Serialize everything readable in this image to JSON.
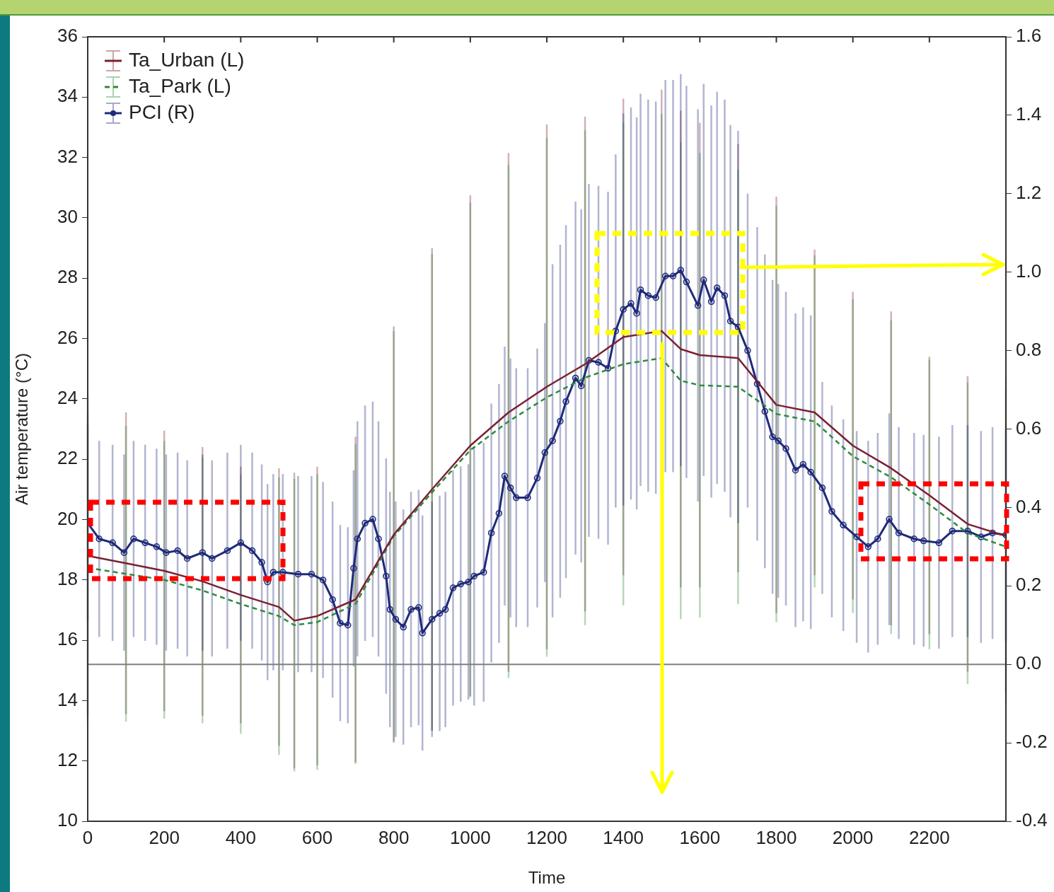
{
  "chart_data": {
    "type": "line",
    "xlabel": "Time",
    "ylabel": "Air temperature (°C)",
    "xlim": [
      0,
      2400
    ],
    "xticks": [
      0,
      200,
      400,
      600,
      800,
      1000,
      1200,
      1400,
      1600,
      1800,
      2000,
      2200,
      {
        "value": 2400,
        "label": null
      }
    ],
    "ylim": [
      10,
      36
    ],
    "yticks": [
      10,
      12,
      14,
      16,
      18,
      20,
      22,
      24,
      26,
      28,
      30,
      32,
      34,
      36
    ],
    "y2lim": [
      -0.4,
      1.6
    ],
    "y2ticks": [
      -0.4,
      -0.2,
      {
        "value": 0,
        "label": "0.0"
      },
      0.2,
      0.4,
      0.6,
      0.8,
      {
        "value": 1,
        "label": "1.0"
      },
      1.2,
      1.4,
      1.6
    ],
    "legend": "top left",
    "ref_lines": [
      {
        "axis": "y2",
        "value": 0,
        "color": "#808080"
      }
    ],
    "series": [
      {
        "name": "Ta_Urban (L)",
        "color": "#7b2030",
        "line_style": "solid",
        "marker": "none",
        "x": [
          0,
          100,
          200,
          300,
          400,
          500,
          540,
          600,
          700,
          800,
          900,
          1000,
          1100,
          1200,
          1300,
          1400,
          1500,
          1550,
          1600,
          1700,
          1800,
          1900,
          2000,
          2100,
          2200,
          2300,
          2400
        ],
        "values": [
          18.8,
          18.55,
          18.3,
          17.95,
          17.5,
          17.1,
          16.65,
          16.8,
          17.35,
          19.5,
          21.0,
          22.45,
          23.55,
          24.4,
          25.15,
          26.05,
          26.25,
          25.65,
          25.45,
          25.35,
          23.8,
          23.55,
          22.45,
          21.7,
          20.8,
          19.85,
          19.45
        ],
        "errors": [
          5.25,
          5.0,
          4.65,
          4.45,
          4.25,
          4.6,
          4.9,
          4.95,
          5.4,
          6.9,
          8.0,
          8.3,
          8.6,
          8.7,
          8.2,
          7.9,
          8.0,
          7.9,
          7.7,
          7.1,
          6.9,
          5.4,
          5.1,
          5.2,
          4.6,
          4.9,
          5.2
        ]
      },
      {
        "name": "Ta_Park (L)",
        "color": "#2e8b3a",
        "line_style": "dashed",
        "marker": "none",
        "x": [
          0,
          100,
          200,
          300,
          400,
          500,
          540,
          600,
          700,
          800,
          900,
          1000,
          1100,
          1200,
          1300,
          1400,
          1500,
          1550,
          1600,
          1700,
          1800,
          1900,
          2000,
          2100,
          2200,
          2300,
          2400
        ],
        "values": [
          18.4,
          18.2,
          18.0,
          17.65,
          17.2,
          16.8,
          16.5,
          16.6,
          17.2,
          19.45,
          20.9,
          22.3,
          23.25,
          24.05,
          24.7,
          25.15,
          25.35,
          24.6,
          24.45,
          24.4,
          23.5,
          23.25,
          22.1,
          21.4,
          20.5,
          19.55,
          19.1
        ],
        "errors": [
          5.1,
          4.9,
          4.6,
          4.4,
          4.3,
          4.6,
          4.85,
          4.9,
          5.3,
          6.8,
          7.9,
          8.2,
          8.5,
          8.6,
          8.2,
          8.0,
          8.1,
          7.9,
          7.7,
          7.2,
          6.9,
          5.5,
          5.2,
          5.2,
          4.8,
          5.0,
          5.2
        ]
      },
      {
        "name": "PCI (R)",
        "color": "#1f2a7a",
        "axis": "y2",
        "line_style": "solid",
        "marker": "circle",
        "x": [
          0,
          30,
          65,
          95,
          120,
          150,
          180,
          205,
          235,
          260,
          300,
          325,
          365,
          400,
          430,
          455,
          470,
          485,
          510,
          550,
          585,
          615,
          640,
          660,
          680,
          695,
          705,
          725,
          745,
          760,
          780,
          790,
          805,
          825,
          845,
          865,
          875,
          900,
          920,
          935,
          955,
          975,
          995,
          1010,
          1035,
          1055,
          1075,
          1090,
          1105,
          1120,
          1150,
          1175,
          1195,
          1215,
          1235,
          1250,
          1275,
          1290,
          1310,
          1335,
          1360,
          1380,
          1400,
          1420,
          1435,
          1445,
          1465,
          1485,
          1510,
          1530,
          1550,
          1565,
          1595,
          1610,
          1630,
          1645,
          1665,
          1680,
          1700,
          1725,
          1750,
          1770,
          1790,
          1805,
          1825,
          1850,
          1870,
          1890,
          1920,
          1945,
          1975,
          2010,
          2040,
          2065,
          2095,
          2120,
          2160,
          2185,
          2225,
          2260,
          2300,
          2335,
          2365,
          2400
        ],
        "values": [
          0.36,
          0.32,
          0.31,
          0.285,
          0.32,
          0.31,
          0.3,
          0.285,
          0.29,
          0.27,
          0.285,
          0.27,
          0.29,
          0.31,
          0.29,
          0.26,
          0.21,
          0.235,
          0.235,
          0.23,
          0.23,
          0.215,
          0.165,
          0.105,
          0.1,
          0.245,
          0.32,
          0.36,
          0.37,
          0.32,
          0.225,
          0.14,
          0.115,
          0.095,
          0.14,
          0.145,
          0.08,
          0.115,
          0.13,
          0.14,
          0.195,
          0.205,
          0.21,
          0.225,
          0.235,
          0.335,
          0.385,
          0.48,
          0.45,
          0.425,
          0.425,
          0.475,
          0.54,
          0.57,
          0.62,
          0.67,
          0.73,
          0.71,
          0.775,
          0.77,
          0.755,
          0.85,
          0.905,
          0.92,
          0.895,
          0.955,
          0.94,
          0.935,
          0.99,
          0.99,
          1.005,
          0.975,
          0.915,
          0.98,
          0.925,
          0.96,
          0.94,
          0.875,
          0.86,
          0.8,
          0.715,
          0.645,
          0.58,
          0.57,
          0.55,
          0.495,
          0.51,
          0.49,
          0.45,
          0.39,
          0.355,
          0.325,
          0.3,
          0.32,
          0.37,
          0.335,
          0.32,
          0.315,
          0.31,
          0.34,
          0.34,
          0.325,
          0.335,
          0.33
        ],
        "errors": [
          0.25,
          0.25,
          0.25,
          0.25,
          0.25,
          0.25,
          0.25,
          0.25,
          0.25,
          0.25,
          0.25,
          0.25,
          0.25,
          0.25,
          0.25,
          0.25,
          0.25,
          0.25,
          0.25,
          0.25,
          0.25,
          0.25,
          0.25,
          0.25,
          0.25,
          0.25,
          0.3,
          0.3,
          0.3,
          0.3,
          0.3,
          0.3,
          0.3,
          0.3,
          0.3,
          0.3,
          0.3,
          0.3,
          0.3,
          0.3,
          0.3,
          0.3,
          0.3,
          0.33,
          0.33,
          0.33,
          0.33,
          0.33,
          0.33,
          0.33,
          0.33,
          0.33,
          0.33,
          0.45,
          0.45,
          0.45,
          0.45,
          0.45,
          0.45,
          0.45,
          0.45,
          0.45,
          0.5,
          0.5,
          0.5,
          0.5,
          0.5,
          0.5,
          0.5,
          0.5,
          0.5,
          0.5,
          0.5,
          0.5,
          0.5,
          0.5,
          0.5,
          0.5,
          0.5,
          0.4,
          0.4,
          0.4,
          0.4,
          0.4,
          0.4,
          0.4,
          0.4,
          0.4,
          0.27,
          0.27,
          0.27,
          0.27,
          0.27,
          0.27,
          0.27,
          0.27,
          0.27,
          0.27,
          0.27,
          0.27,
          0.27,
          0.27,
          0.27,
          0.27
        ]
      }
    ]
  }
}
